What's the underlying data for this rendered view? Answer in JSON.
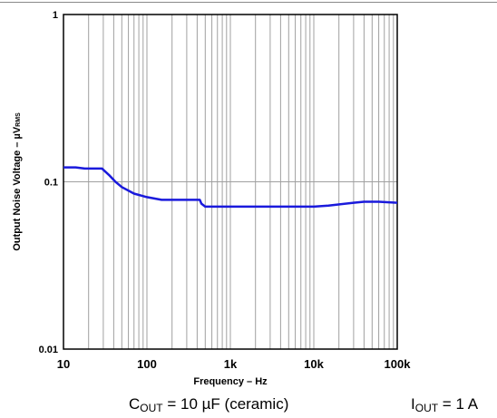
{
  "chart_data": {
    "type": "line",
    "title": "",
    "xlabel": "Frequency – Hz",
    "ylabel_main": "Output Noise Voltage – µV",
    "ylabel_sub": "RMS",
    "x_scale": "log",
    "y_scale": "log",
    "xlim": [
      10,
      100000
    ],
    "ylim": [
      0.01,
      1
    ],
    "x_ticks": [
      10,
      100,
      1000,
      10000,
      100000
    ],
    "x_tick_labels": [
      "10",
      "100",
      "1k",
      "10k",
      "100k"
    ],
    "y_ticks": [
      0.01,
      0.1,
      1
    ],
    "y_tick_labels": [
      "0.01",
      "0.1",
      "1"
    ],
    "grid": true,
    "line_color": "#1a1adc",
    "grid_color": "#a0a0a0",
    "series": [
      {
        "x": [
          10,
          14,
          18,
          29,
          35,
          42,
          50,
          70,
          100,
          150,
          300,
          430,
          450,
          500,
          700,
          1000,
          3000,
          10000,
          15000,
          30000,
          40000,
          60000,
          100000
        ],
        "y": [
          0.122,
          0.122,
          0.12,
          0.12,
          0.11,
          0.1,
          0.093,
          0.085,
          0.081,
          0.078,
          0.078,
          0.078,
          0.074,
          0.071,
          0.071,
          0.071,
          0.071,
          0.071,
          0.072,
          0.075,
          0.076,
          0.076,
          0.075
        ]
      }
    ]
  },
  "conditions": {
    "left": {
      "main": "C",
      "sub": "OUT",
      "rest": " = 10 µF (ceramic)"
    },
    "right": {
      "main": "I",
      "sub": "OUT",
      "rest": " = 1 A"
    }
  }
}
